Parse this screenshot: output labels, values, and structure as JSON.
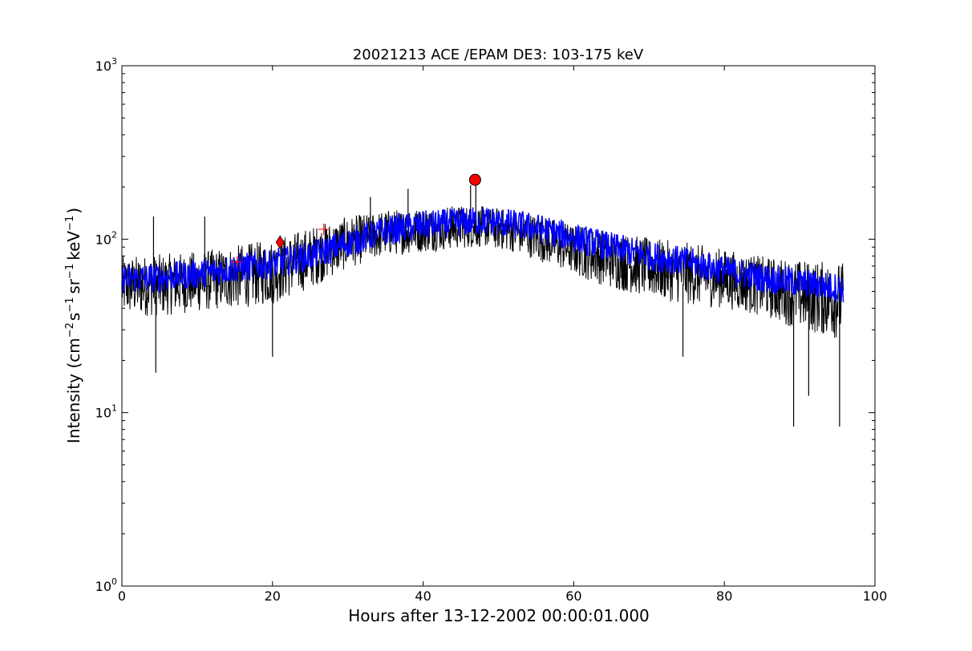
{
  "chart_data": {
    "type": "line",
    "title": "20021213 ACE /EPAM DE3: 103-175 keV",
    "xlabel": "Hours after 13-12-2002 00:00:01.000",
    "ylabel": {
      "prefix": "Intensity (cm",
      "exp1": "−2",
      "part2": "s",
      "exp2": "−1",
      "part3": "sr",
      "exp3": "−1",
      "part4": "keV",
      "exp4": "−1",
      "suffix": ")"
    },
    "xlim": [
      0,
      100
    ],
    "ylim": [
      1,
      1000
    ],
    "yscale": "log",
    "grid": false,
    "x_ticks": [
      "0",
      "20",
      "40",
      "60",
      "80",
      "100"
    ],
    "y_ticks": [
      {
        "value": 1,
        "base": "10",
        "exp": "0"
      },
      {
        "value": 10,
        "base": "10",
        "exp": "1"
      },
      {
        "value": 100,
        "base": "10",
        "exp": "2"
      },
      {
        "value": 1000,
        "base": "10",
        "exp": "3"
      }
    ],
    "series": [
      {
        "role": "raw",
        "color": "#000000",
        "x_range": [
          0,
          95.8
        ],
        "envelope_upper": [
          [
            0,
            80
          ],
          [
            5,
            82
          ],
          [
            10,
            85
          ],
          [
            15,
            92
          ],
          [
            20,
            100
          ],
          [
            25,
            118
          ],
          [
            30,
            135
          ],
          [
            35,
            148
          ],
          [
            40,
            152
          ],
          [
            45,
            158
          ],
          [
            48,
            155
          ],
          [
            52,
            148
          ],
          [
            55,
            140
          ],
          [
            60,
            122
          ],
          [
            65,
            112
          ],
          [
            70,
            102
          ],
          [
            75,
            96
          ],
          [
            80,
            88
          ],
          [
            85,
            80
          ],
          [
            90,
            76
          ],
          [
            95.8,
            74
          ]
        ],
        "envelope_lower": [
          [
            0,
            36
          ],
          [
            5,
            36
          ],
          [
            10,
            38
          ],
          [
            15,
            40
          ],
          [
            20,
            42
          ],
          [
            25,
            52
          ],
          [
            30,
            68
          ],
          [
            35,
            80
          ],
          [
            40,
            84
          ],
          [
            45,
            88
          ],
          [
            48,
            90
          ],
          [
            52,
            84
          ],
          [
            55,
            76
          ],
          [
            60,
            62
          ],
          [
            65,
            52
          ],
          [
            70,
            46
          ],
          [
            75,
            42
          ],
          [
            80,
            40
          ],
          [
            85,
            36
          ],
          [
            90,
            30
          ],
          [
            95.8,
            26
          ]
        ],
        "spikes_down": [
          [
            4.5,
            17
          ],
          [
            20,
            21
          ],
          [
            74.5,
            21
          ],
          [
            89.2,
            8.3
          ],
          [
            91.2,
            12.5
          ],
          [
            95.3,
            8.3
          ]
        ],
        "spikes_up": [
          [
            4.2,
            135
          ],
          [
            11,
            135
          ],
          [
            33,
            175
          ],
          [
            38,
            195
          ],
          [
            46.3,
            205
          ],
          [
            47,
            215
          ]
        ]
      },
      {
        "role": "smoothed",
        "color": "#0000ff",
        "center": [
          [
            0,
            59
          ],
          [
            5,
            60
          ],
          [
            10,
            63
          ],
          [
            15,
            68
          ],
          [
            20,
            72
          ],
          [
            25,
            80
          ],
          [
            30,
            95
          ],
          [
            35,
            112
          ],
          [
            40,
            120
          ],
          [
            45,
            125
          ],
          [
            48,
            128
          ],
          [
            52,
            122
          ],
          [
            55,
            116
          ],
          [
            60,
            102
          ],
          [
            65,
            90
          ],
          [
            70,
            80
          ],
          [
            75,
            74
          ],
          [
            80,
            66
          ],
          [
            85,
            60
          ],
          [
            90,
            56
          ],
          [
            95.8,
            52
          ]
        ],
        "half_width_factor": 1.22
      }
    ],
    "markers": [
      {
        "x": 15.3,
        "y": 74,
        "shape": "plus",
        "color": "#ff0000"
      },
      {
        "x": 21,
        "y": 96,
        "shape": "diamond",
        "color": "#ff0000"
      },
      {
        "x": 26.8,
        "y": 114,
        "shape": "plus",
        "color": "#ff0000"
      },
      {
        "x": 46.9,
        "y": 220,
        "shape": "circle",
        "color": "#ff0000"
      }
    ]
  }
}
